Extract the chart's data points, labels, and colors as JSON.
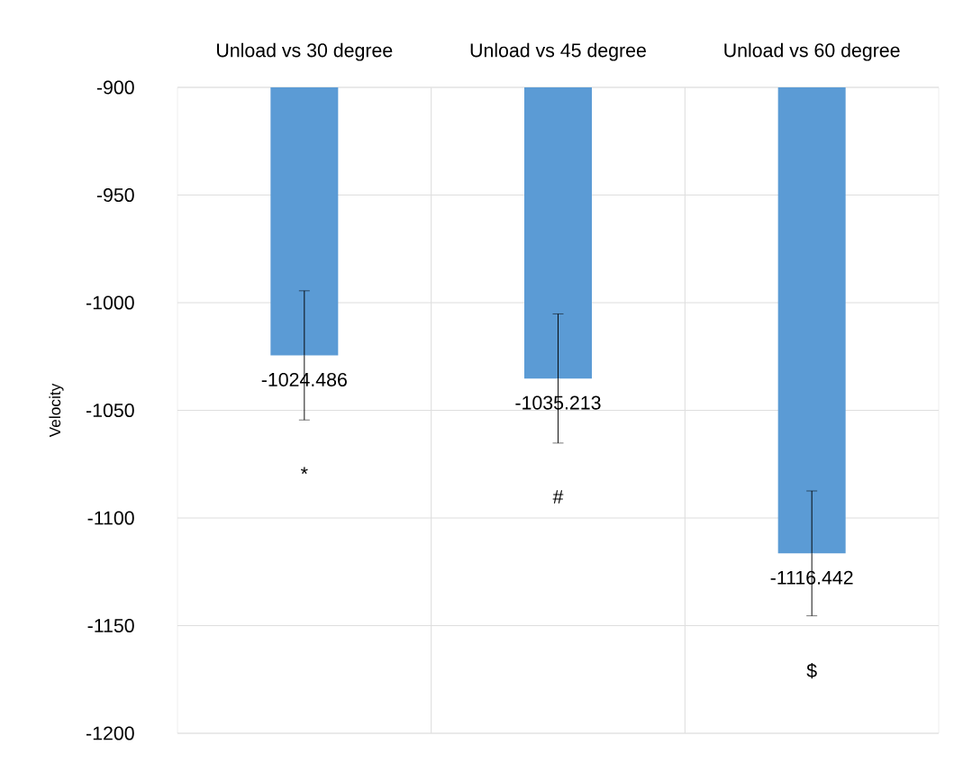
{
  "chart_data": {
    "type": "bar",
    "ylabel": "Velocity",
    "categories": [
      "Unload vs 30 degree",
      "Unload vs 45 degree",
      "Unload vs 60 degree"
    ],
    "values": [
      -1024.486,
      -1035.213,
      -1116.442
    ],
    "errors": [
      30,
      30,
      29
    ],
    "color": "#5b9bd5",
    "ylim": [
      -1200,
      -900
    ],
    "yticks": [
      -1200,
      -1150,
      -1100,
      -1050,
      -1000,
      -950,
      -900
    ],
    "grid": true,
    "data_labels": true,
    "annotations": [
      "*",
      "#",
      "$"
    ]
  }
}
